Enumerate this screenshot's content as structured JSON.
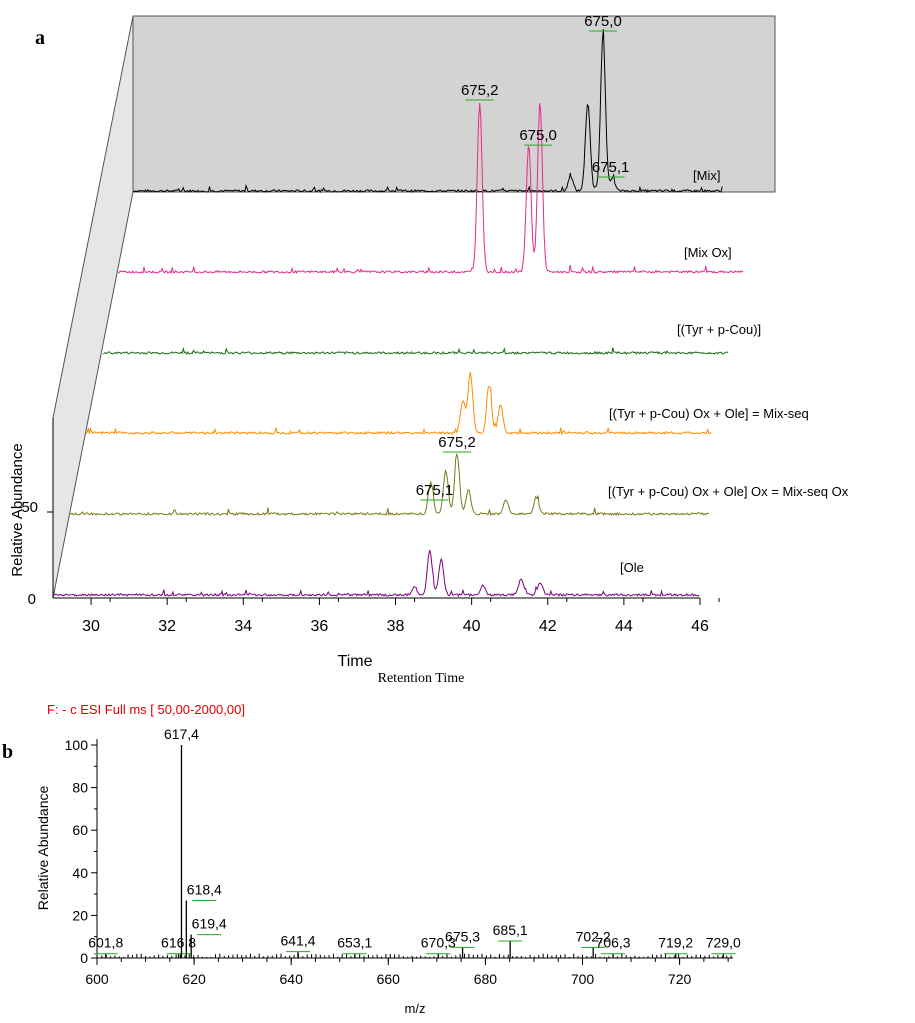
{
  "chart_data": [
    {
      "panel_label": "a",
      "type": "line",
      "xlabel": "Time",
      "xlabel_secondary": "Retention Time",
      "ylabel": "Relative Abundance",
      "x_ticks": [
        30,
        32,
        34,
        36,
        38,
        40,
        42,
        44,
        46
      ],
      "y_ticks": [
        "0",
        "50"
      ],
      "xlim": [
        29,
        46.2
      ],
      "series": [
        {
          "name": "[Mix]",
          "color": "#000000",
          "x_start": 29,
          "x_end": 44.5,
          "peaks": [
            [
              40.5,
              9
            ],
            [
              40.95,
              55
            ],
            [
              41.35,
              100
            ],
            [
              41.6,
              8
            ]
          ],
          "peak_labels": [
            {
              "text": "675,0",
              "x": 41.35
            },
            {
              "text": "675,1",
              "x": 41.55
            }
          ]
        },
        {
          "name": "[Mix Ox]",
          "color": "#e8288c",
          "x_start": 29,
          "x_end": 45.6,
          "peaks": [
            [
              38.6,
              100
            ],
            [
              39.9,
              75
            ],
            [
              40.2,
              100
            ]
          ],
          "peak_labels": [
            {
              "text": "675,2",
              "x": 38.6
            },
            {
              "text": "675,0",
              "x": 40.15
            }
          ]
        },
        {
          "name": "[(Tyr + p-Cou)]",
          "color": "#1a6b1a",
          "x_start": 29,
          "x_end": 45.6,
          "peaks": [],
          "peak_labels": []
        },
        {
          "name": "[(Tyr + p-Cou) Ox + Ole] = Mix-seq",
          "color": "#ff8c00",
          "x_start": 29,
          "x_end": 45.6,
          "peaks": [
            [
              39.0,
              40
            ],
            [
              39.2,
              75
            ],
            [
              39.7,
              60
            ],
            [
              40.0,
              35
            ]
          ],
          "peak_labels": []
        },
        {
          "name": "[(Tyr + p-Cou) Ox + Ole] Ox = Mix-seq Ox",
          "color": "#7a7a1a",
          "x_start": 29,
          "x_end": 46.0,
          "peaks": [
            [
              38.6,
              40
            ],
            [
              39.0,
              55
            ],
            [
              39.3,
              75
            ],
            [
              39.6,
              30
            ],
            [
              40.6,
              18
            ],
            [
              41.4,
              20
            ]
          ],
          "peak_labels": [
            {
              "text": "675,1",
              "x": 38.7
            },
            {
              "text": "675,2",
              "x": 39.3
            }
          ]
        },
        {
          "name": "[Ole",
          "color": "#800080",
          "x_start": 29,
          "x_end": 46.0,
          "peaks": [
            [
              38.5,
              10
            ],
            [
              38.9,
              55
            ],
            [
              39.2,
              45
            ],
            [
              40.3,
              12
            ],
            [
              41.3,
              20
            ],
            [
              41.8,
              15
            ]
          ],
          "peak_labels": []
        }
      ]
    },
    {
      "panel_label": "b",
      "type": "bar",
      "scan_header": "F: - c ESI Full ms [ 50,00-2000,00]",
      "xlabel": "m/z",
      "ylabel": "Relative Abundance",
      "x_ticks": [
        600,
        620,
        640,
        660,
        680,
        700,
        720
      ],
      "y_ticks": [
        0,
        20,
        40,
        60,
        80,
        100
      ],
      "xlim": [
        600,
        731
      ],
      "ylim": [
        0,
        100
      ],
      "peaks": [
        {
          "mz": 601.8,
          "value": 2,
          "label": "601,8"
        },
        {
          "mz": 616.8,
          "value": 2,
          "label": "616,8"
        },
        {
          "mz": 617.4,
          "value": 100,
          "label": "617,4"
        },
        {
          "mz": 618.4,
          "value": 27,
          "label": "618,4"
        },
        {
          "mz": 619.4,
          "value": 11,
          "label": "619,4"
        },
        {
          "mz": 641.4,
          "value": 3,
          "label": "641,4"
        },
        {
          "mz": 653.1,
          "value": 2,
          "label": "653,1"
        },
        {
          "mz": 670.3,
          "value": 2,
          "label": "670,3"
        },
        {
          "mz": 675.3,
          "value": 5,
          "label": "675,3"
        },
        {
          "mz": 685.1,
          "value": 8,
          "label": "685,1"
        },
        {
          "mz": 702.2,
          "value": 5,
          "label": "702,2"
        },
        {
          "mz": 706.3,
          "value": 2,
          "label": "706,3"
        },
        {
          "mz": 719.2,
          "value": 2,
          "label": "719,2"
        },
        {
          "mz": 729.0,
          "value": 2,
          "label": "729,0"
        }
      ]
    }
  ]
}
